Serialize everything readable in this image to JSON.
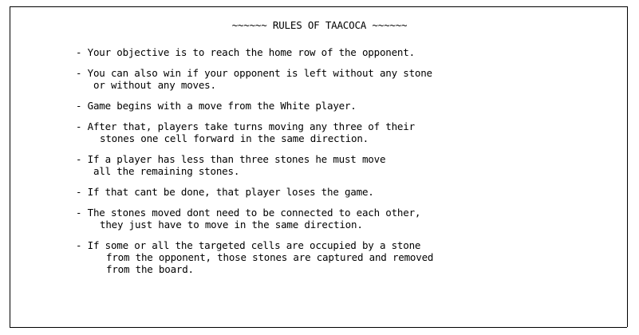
{
  "title": "~~~~~~ RULES OF TAACOCA ~~~~~~",
  "rules": [
    {
      "lines": [
        "Your objective is to reach the home row of the opponent."
      ]
    },
    {
      "lines": [
        "You can also win if your opponent is left without any stone",
        "or without any moves."
      ]
    },
    {
      "lines": [
        "Game begins with a move from the White player."
      ]
    },
    {
      "lines": [
        "After that, players take turns moving any three of their",
        "stones one cell forward in the same direction."
      ]
    },
    {
      "lines": [
        "If a player has less than three stones he must move",
        "all the remaining stones."
      ]
    },
    {
      "lines": [
        "If that cant be done, that player loses the game."
      ]
    },
    {
      "lines": [
        "The stones moved dont need to be connected to each other,",
        "they just have to move in the same direction."
      ]
    },
    {
      "lines": [
        "If some or all the targeted cells are occupied by a stone",
        "from the opponent, those stones are captured and removed",
        "from the board."
      ]
    }
  ],
  "bullet": "- "
}
